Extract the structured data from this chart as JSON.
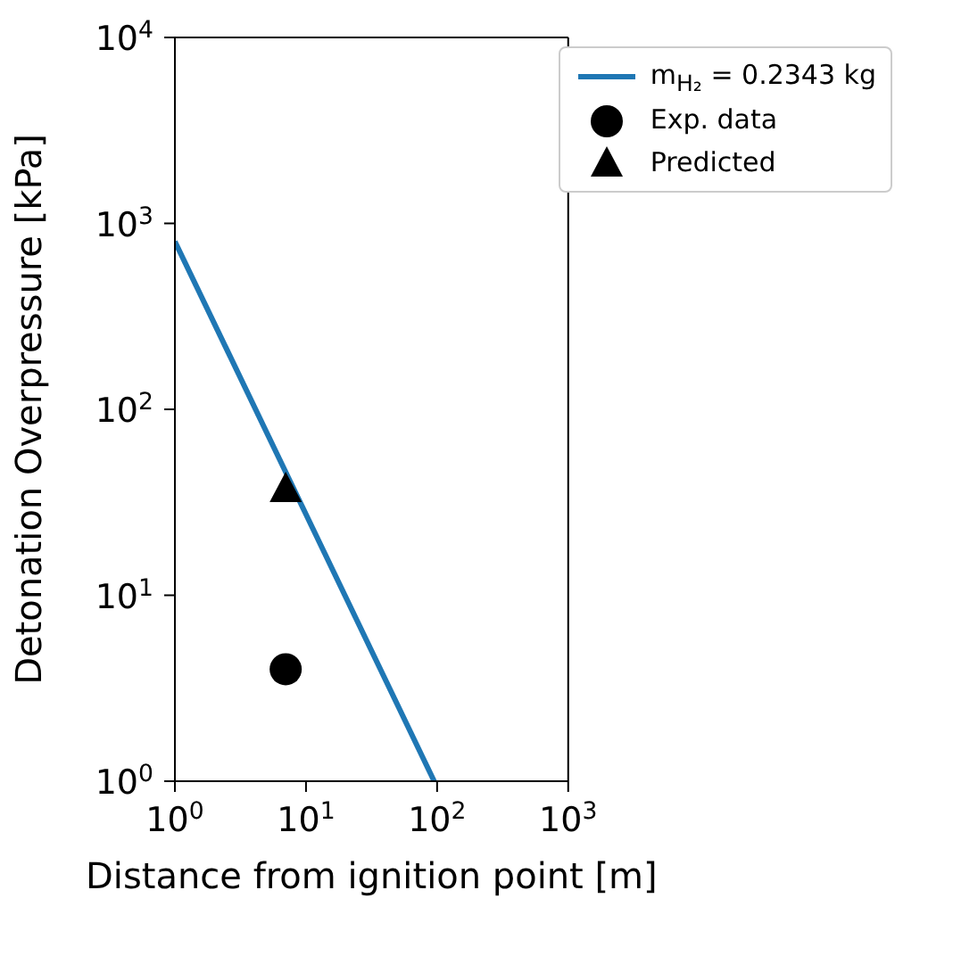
{
  "chart_data": {
    "type": "line",
    "xlabel": "Distance from ignition point [m]",
    "ylabel": "Detonation Overpressure [kPa]",
    "log": "xy",
    "grid": false,
    "legend": "top right",
    "xlim": [
      1,
      1000
    ],
    "xticks": [
      {
        "value": 1,
        "label": "10$^{0}$"
      },
      {
        "value": 10,
        "label": "10$^{1}$"
      },
      {
        "value": 100,
        "label": "10$^{2}$"
      },
      {
        "value": 1000,
        "label": "10$^{3}$"
      }
    ],
    "ylim": [
      1,
      10000
    ],
    "yticks": [
      {
        "value": 1,
        "label": "10$^{0}$"
      },
      {
        "value": 10,
        "label": "10$^{1}$"
      },
      {
        "value": 100,
        "label": "10$^{2}$"
      },
      {
        "value": 1000,
        "label": "10$^{3}$"
      },
      {
        "value": 10000,
        "label": "10$^{4}$"
      }
    ],
    "series": [
      {
        "type": "line",
        "name": "m$_{H₂}$ = 0.2343 kg",
        "color": "#1f77b4",
        "x": [
          1,
          95
        ],
        "values": [
          800,
          1
        ],
        "marker": "none"
      },
      {
        "type": "scatter",
        "name": "Exp. data",
        "color": "#000000",
        "x": [
          7
        ],
        "values": [
          4
        ],
        "marker": "circle"
      },
      {
        "type": "scatter",
        "name": "Predicted",
        "color": "#000000",
        "x": [
          7
        ],
        "values": [
          37
        ],
        "marker": "triangle"
      }
    ]
  }
}
